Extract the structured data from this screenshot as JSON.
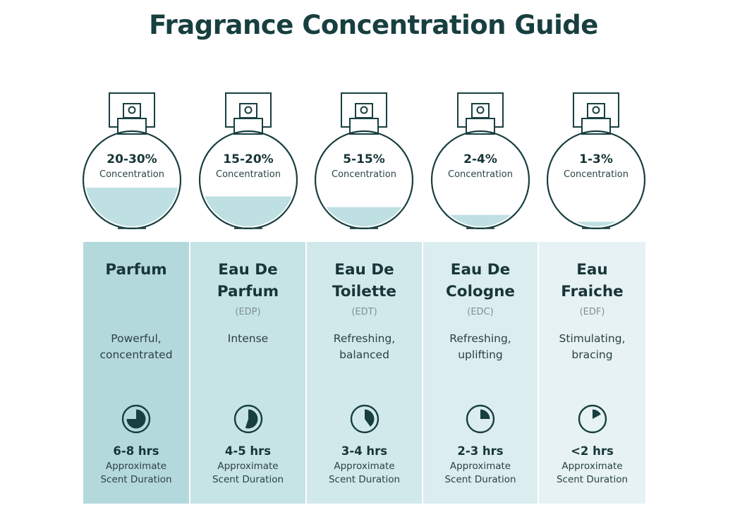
{
  "title": "Fragrance Concentration Guide",
  "colors": {
    "dark": "#183f40",
    "liquid": "#bfe0e3",
    "card_bg": [
      "#b4d9dc",
      "#c6e3e6",
      "#d2e9eb",
      "#dcedef",
      "#e6f2f3"
    ]
  },
  "types": [
    {
      "concentration": "20-30%",
      "concentration_label": "Concentration",
      "fill_level": 0.42,
      "name_lines": [
        "Parfum"
      ],
      "abbreviation": "",
      "description_lines": [
        "Powerful,",
        "concentrated"
      ],
      "timer_icon": "clock-pie-icon",
      "timer_fraction": 0.75,
      "duration": "6-8 hrs",
      "duration_label_lines": [
        "Approximate",
        "Scent Duration"
      ]
    },
    {
      "concentration": "15-20%",
      "concentration_label": "Concentration",
      "fill_level": 0.33,
      "name_lines": [
        "Eau De",
        "Parfum"
      ],
      "abbreviation": "(EDP)",
      "description_lines": [
        "Intense"
      ],
      "timer_icon": "clock-pie-icon",
      "timer_fraction": 0.55,
      "duration": "4-5 hrs",
      "duration_label_lines": [
        "Approximate",
        "Scent Duration"
      ]
    },
    {
      "concentration": "5-15%",
      "concentration_label": "Concentration",
      "fill_level": 0.22,
      "name_lines": [
        "Eau De",
        "Toilette"
      ],
      "abbreviation": "(EDT)",
      "description_lines": [
        "Refreshing,",
        "balanced"
      ],
      "timer_icon": "clock-pie-icon",
      "timer_fraction": 0.4,
      "duration": "3-4 hrs",
      "duration_label_lines": [
        "Approximate",
        "Scent Duration"
      ]
    },
    {
      "concentration": "2-4%",
      "concentration_label": "Concentration",
      "fill_level": 0.14,
      "name_lines": [
        "Eau De",
        "Cologne"
      ],
      "abbreviation": "(EDC)",
      "description_lines": [
        "Refreshing,",
        "uplifting"
      ],
      "timer_icon": "clock-pie-icon",
      "timer_fraction": 0.25,
      "duration": "2-3 hrs",
      "duration_label_lines": [
        "Approximate",
        "Scent Duration"
      ]
    },
    {
      "concentration": "1-3%",
      "concentration_label": "Concentration",
      "fill_level": 0.07,
      "name_lines": [
        "Eau",
        "Fraiche"
      ],
      "abbreviation": "(EDF)",
      "description_lines": [
        "Stimulating,",
        "bracing"
      ],
      "timer_icon": "clock-pie-icon",
      "timer_fraction": 0.17,
      "duration": "<2 hrs",
      "duration_label_lines": [
        "Approximate",
        "Scent Duration"
      ]
    }
  ]
}
